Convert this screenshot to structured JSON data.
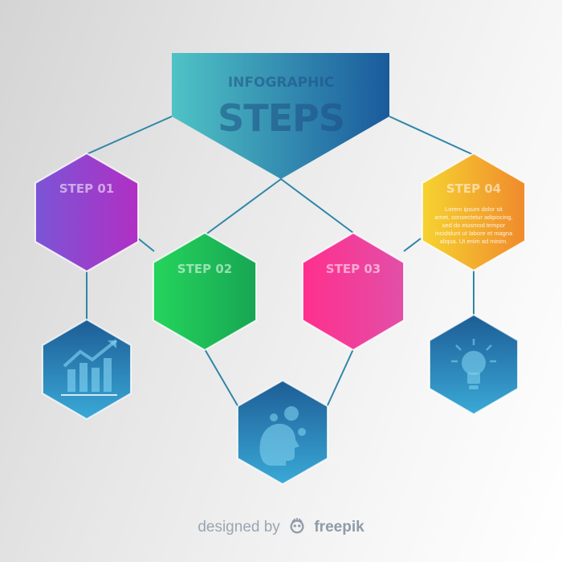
{
  "header": {
    "line1": "INFOGRAPHIC",
    "line2": "STEPS",
    "gradient_from": "#4fc3c6",
    "gradient_to": "#1a5a9c"
  },
  "steps": [
    {
      "id": "step-purple",
      "title": "STEP",
      "number": "01",
      "text": [],
      "gradient_from": "#7a55d6",
      "gradient_to": "#b12fc4"
    },
    {
      "id": "step-green",
      "title": "STEP",
      "number": "02",
      "text": [],
      "gradient_from": "#25d45c",
      "gradient_to": "#17a653"
    },
    {
      "id": "step-pink",
      "title": "STEP",
      "number": "03",
      "text": [],
      "gradient_from": "#ff2f8d",
      "gradient_to": "#e24fa8"
    },
    {
      "id": "step-orange",
      "title": "STEP",
      "number": "04",
      "text": [
        "Lorem ipsum dolor sit",
        "amet, consectetur adipiscing,",
        "sed do eiusmod tempor",
        "incididunt ut labore et magna",
        "aliqua. Ut enim ad minim."
      ],
      "gradient_from": "#f6d330",
      "gradient_to": "#f08a2c"
    }
  ],
  "icons": [
    {
      "name": "growth-chart-icon"
    },
    {
      "name": "gear-head-icon"
    },
    {
      "name": "lightbulb-icon"
    }
  ],
  "colors": {
    "connector": "#2f86a8",
    "icon_hex_from": "#3aa9d6",
    "icon_hex_to": "#1d5d96"
  },
  "credit": {
    "prefix": "designed by",
    "brand": "freepik"
  }
}
